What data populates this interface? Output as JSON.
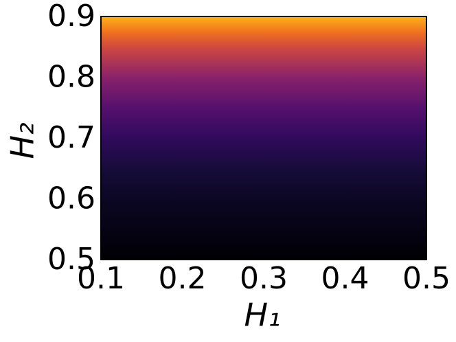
{
  "chart_data": {
    "type": "contour",
    "xlabel": "H₁",
    "ylabel": "H₂",
    "xlim": [
      0.1,
      0.5
    ],
    "ylim": [
      0.5,
      0.9
    ],
    "xticks": [
      0.1,
      0.2,
      0.3,
      0.4,
      0.5
    ],
    "yticks": [
      0.5,
      0.6,
      0.7,
      0.8,
      0.9
    ],
    "levels": [
      0.5,
      0.6,
      0.65,
      0.7,
      0.75,
      0.8,
      0.85,
      0.875,
      0.9
    ],
    "colors": [
      "#000004",
      "#0b0724",
      "#170c3a",
      "#300a5c",
      "#56106e",
      "#8a226a",
      "#d1493f",
      "#f1731d",
      "#fbb51a"
    ]
  }
}
